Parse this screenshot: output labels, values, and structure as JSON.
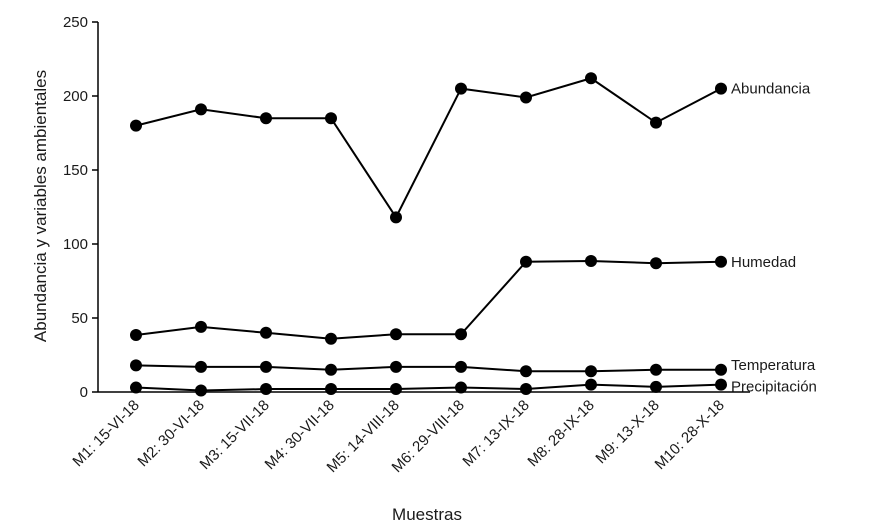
{
  "chart_data": {
    "type": "line",
    "title": "",
    "xlabel": "Muestras",
    "ylabel": "Abundancia y variables ambientales",
    "ylim": [
      0,
      250
    ],
    "yticks": [
      0,
      50,
      100,
      150,
      200,
      250
    ],
    "grid": false,
    "legend": "labels at line ends",
    "colors": {
      "line": "#000000",
      "marker": "#000000"
    },
    "categories": [
      "M1: 15-VI-18",
      "M2: 30-VI-18",
      "M3: 15-VII-18",
      "M4: 30-VII-18",
      "M5: 14-VIII-18",
      "M6: 29-VIII-18",
      "M7: 13-IX-18",
      "M8: 28-IX-18",
      "M9: 13-X-18",
      "M10: 28-X-18"
    ],
    "series": [
      {
        "name": "Abundancia",
        "values": [
          180,
          191,
          185,
          185,
          118,
          205,
          199,
          212,
          182,
          205
        ]
      },
      {
        "name": "Humedad",
        "values": [
          38.5,
          44,
          40,
          36,
          39,
          39,
          88,
          88.5,
          87,
          88
        ]
      },
      {
        "name": "Temperatura",
        "values": [
          18,
          17,
          17,
          15,
          17,
          17,
          14,
          14,
          15,
          15
        ]
      },
      {
        "name": "Precipitación",
        "values": [
          3,
          1,
          2,
          2,
          2,
          3,
          2,
          5,
          3.5,
          5
        ]
      }
    ]
  }
}
